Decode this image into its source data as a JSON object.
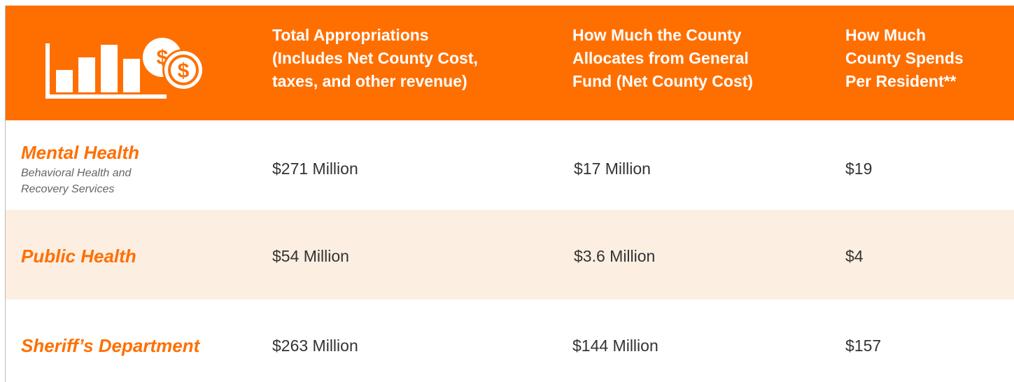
{
  "header": {
    "columns": [
      [
        "Total Appropriations",
        "(Includes Net County Cost,",
        "taxes, and other revenue)"
      ],
      [
        "How Much the County",
        "Allocates from General",
        "Fund (Net County Cost)"
      ],
      [
        "How Much",
        "County Spends",
        "Per Resident**"
      ]
    ]
  },
  "table": {
    "rows": [
      {
        "label": "Mental Health",
        "sublabel": [
          "Behavioral Health and",
          "Recovery Services"
        ],
        "values": [
          "$271 Million",
          "$17 Million",
          "$19"
        ]
      },
      {
        "label": "Public Health",
        "values": [
          "$54 Million",
          "$3.6 Million",
          "$4"
        ]
      },
      {
        "label": "Sheriff’s Department",
        "values": [
          "$263 Million",
          "$144 Million",
          "$157"
        ]
      }
    ]
  }
}
